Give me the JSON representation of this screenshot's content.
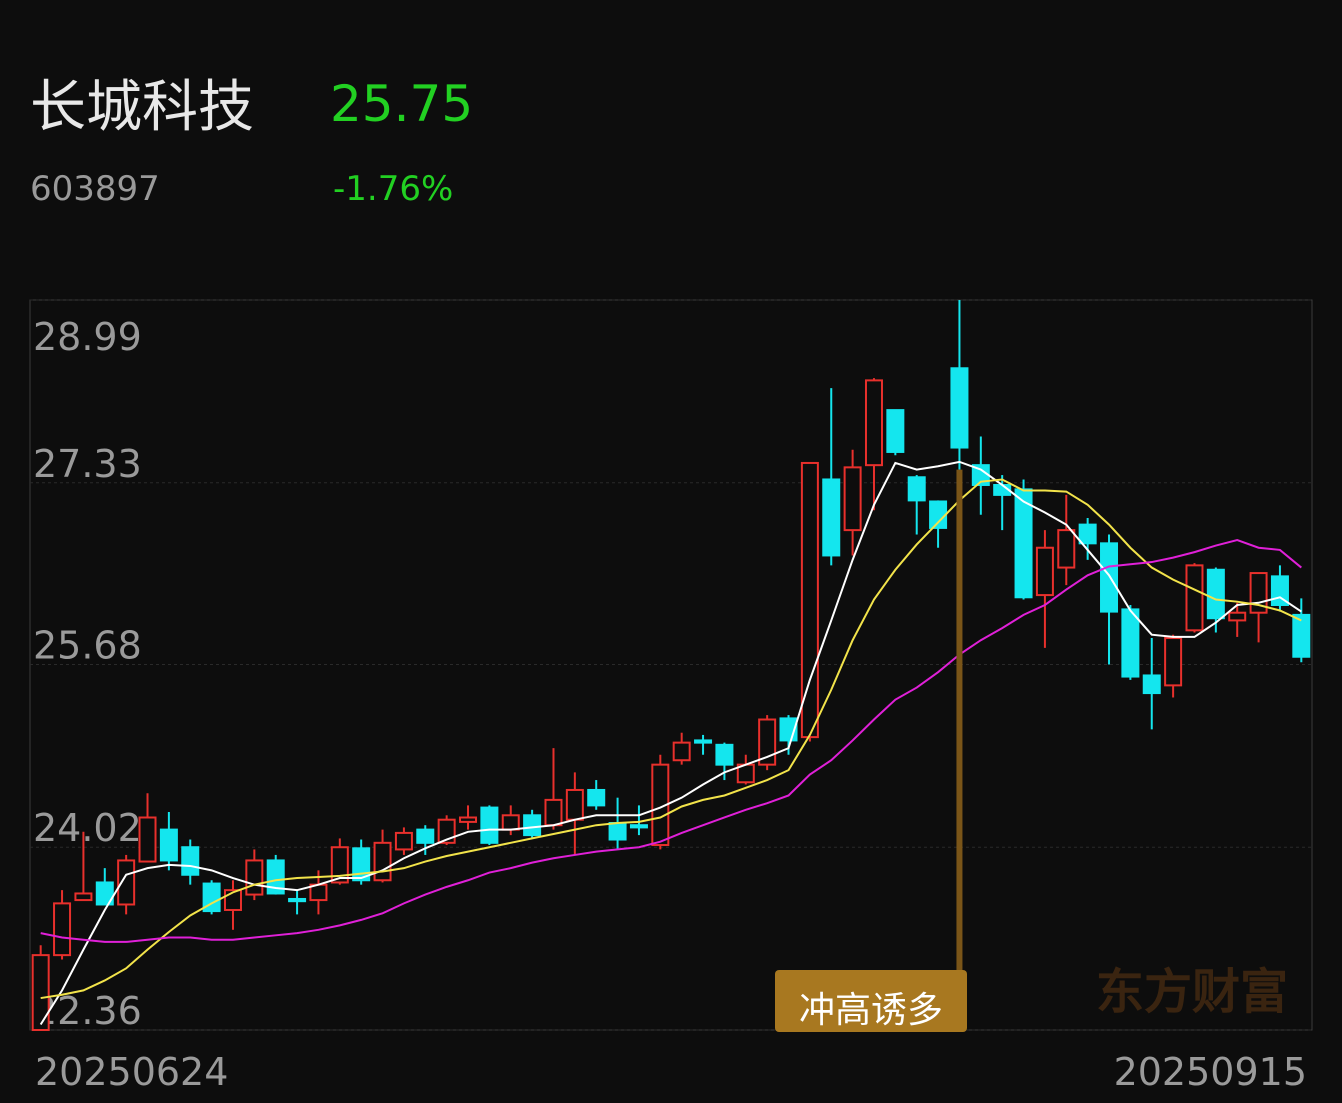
{
  "header": {
    "name": "长城科技",
    "price": "25.75",
    "code": "603897",
    "change": "-1.76%"
  },
  "chart_data": {
    "type": "candlestick",
    "categories": [
      "20250624",
      null,
      null,
      null,
      null,
      null,
      null,
      null,
      null,
      null,
      null,
      null,
      null,
      null,
      null,
      null,
      null,
      null,
      null,
      null,
      null,
      null,
      null,
      null,
      null,
      null,
      null,
      null,
      null,
      null,
      null,
      null,
      null,
      null,
      null,
      null,
      null,
      null,
      null,
      null,
      null,
      null,
      null,
      null,
      null,
      null,
      null,
      null,
      null,
      null,
      null,
      null,
      null,
      null,
      null,
      null,
      null,
      null,
      null,
      "20250915"
    ],
    "open": [
      22.36,
      23.04,
      23.54,
      23.7,
      23.5,
      23.89,
      24.18,
      24.02,
      23.69,
      23.45,
      23.59,
      23.9,
      23.55,
      23.54,
      23.7,
      24.01,
      23.72,
      24.0,
      24.18,
      24.06,
      24.25,
      24.38,
      24.18,
      24.31,
      24.22,
      24.27,
      24.54,
      24.24,
      24.22,
      24.04,
      24.81,
      24.99,
      24.95,
      24.61,
      24.77,
      25.19,
      25.02,
      27.36,
      26.9,
      27.49,
      27.99,
      27.38,
      27.16,
      28.37,
      27.49,
      27.31,
      27.27,
      26.31,
      26.56,
      26.95,
      26.78,
      26.18,
      25.58,
      25.49,
      25.99,
      26.54,
      26.08,
      26.15,
      26.48,
      26.13
    ],
    "high": [
      23.13,
      23.63,
      24.16,
      23.83,
      23.95,
      24.51,
      24.34,
      24.09,
      23.72,
      23.72,
      24.0,
      23.95,
      23.63,
      23.81,
      24.1,
      24.09,
      24.18,
      24.2,
      24.22,
      24.31,
      24.4,
      24.4,
      24.4,
      24.36,
      24.92,
      24.7,
      24.63,
      24.47,
      24.4,
      24.86,
      25.06,
      25.04,
      24.97,
      24.86,
      25.22,
      25.22,
      27.51,
      28.19,
      27.63,
      28.28,
      27.99,
      27.4,
      27.17,
      28.99,
      27.75,
      27.4,
      27.36,
      26.9,
      27.22,
      27.01,
      26.86,
      26.22,
      25.92,
      25.95,
      26.6,
      26.56,
      26.24,
      26.51,
      26.58,
      26.28
    ],
    "low": [
      22.36,
      23.0,
      23.54,
      23.5,
      23.41,
      23.89,
      23.81,
      23.68,
      23.41,
      23.27,
      23.54,
      23.59,
      23.41,
      23.41,
      23.68,
      23.68,
      23.7,
      23.95,
      23.95,
      24.04,
      24.18,
      24.04,
      24.13,
      24.1,
      24.18,
      23.95,
      24.36,
      24.0,
      24.13,
      24.0,
      24.77,
      24.86,
      24.63,
      24.59,
      24.72,
      24.86,
      24.98,
      26.58,
      26.67,
      27.08,
      27.58,
      26.86,
      26.74,
      27.45,
      27.04,
      26.9,
      26.27,
      25.83,
      26.4,
      26.63,
      25.68,
      25.54,
      25.09,
      25.38,
      25.97,
      25.97,
      25.93,
      25.88,
      26.16,
      25.7
    ],
    "close": [
      23.04,
      23.51,
      23.6,
      23.5,
      23.9,
      24.29,
      23.9,
      23.77,
      23.44,
      23.63,
      23.9,
      23.6,
      23.53,
      23.68,
      24.02,
      23.72,
      24.06,
      24.15,
      24.06,
      24.27,
      24.29,
      24.06,
      24.31,
      24.13,
      24.45,
      24.54,
      24.4,
      24.09,
      24.2,
      24.77,
      24.97,
      24.97,
      24.77,
      24.77,
      25.18,
      24.99,
      27.51,
      26.67,
      27.47,
      28.26,
      27.61,
      27.17,
      26.92,
      27.65,
      27.31,
      27.22,
      26.29,
      26.74,
      26.9,
      26.78,
      26.16,
      25.57,
      25.42,
      25.92,
      26.58,
      26.1,
      26.15,
      26.51,
      26.22,
      25.75
    ],
    "up_color": "#e8302c",
    "down_color": "#14e6ee",
    "series": [
      {
        "color": "#ffffff",
        "values": [
          22.41,
          22.72,
          23.09,
          23.45,
          23.77,
          23.83,
          23.86,
          23.85,
          23.81,
          23.74,
          23.68,
          23.65,
          23.63,
          23.68,
          23.74,
          23.74,
          23.81,
          23.92,
          24.01,
          24.09,
          24.16,
          24.18,
          24.18,
          24.2,
          24.22,
          24.27,
          24.31,
          24.31,
          24.31,
          24.38,
          24.47,
          24.59,
          24.7,
          24.77,
          24.84,
          24.92,
          25.54,
          26.08,
          26.63,
          27.13,
          27.51,
          27.45,
          27.48,
          27.52,
          27.45,
          27.31,
          27.16,
          27.06,
          26.95,
          26.72,
          26.49,
          26.17,
          25.95,
          25.93,
          25.93,
          26.06,
          26.22,
          26.24,
          26.29,
          26.16
        ]
      },
      {
        "color": "#f2e34a",
        "values": [
          22.65,
          22.68,
          22.72,
          22.81,
          22.92,
          23.09,
          23.25,
          23.4,
          23.51,
          23.61,
          23.68,
          23.72,
          23.74,
          23.75,
          23.76,
          23.78,
          23.8,
          23.83,
          23.89,
          23.94,
          23.98,
          24.02,
          24.06,
          24.1,
          24.14,
          24.18,
          24.22,
          24.24,
          24.25,
          24.29,
          24.39,
          24.45,
          24.49,
          24.56,
          24.63,
          24.72,
          25.04,
          25.45,
          25.9,
          26.27,
          26.54,
          26.77,
          26.97,
          27.17,
          27.34,
          27.36,
          27.26,
          27.26,
          27.25,
          27.13,
          26.95,
          26.74,
          26.56,
          26.45,
          26.36,
          26.27,
          26.25,
          26.22,
          26.17,
          26.08
        ]
      },
      {
        "color": "#e020d8",
        "values": [
          23.24,
          23.2,
          23.18,
          23.16,
          23.16,
          23.18,
          23.2,
          23.2,
          23.18,
          23.18,
          23.2,
          23.22,
          23.24,
          23.27,
          23.31,
          23.36,
          23.42,
          23.51,
          23.59,
          23.66,
          23.72,
          23.79,
          23.83,
          23.88,
          23.92,
          23.95,
          23.98,
          24.0,
          24.02,
          24.07,
          24.15,
          24.22,
          24.29,
          24.36,
          24.42,
          24.49,
          24.68,
          24.81,
          24.99,
          25.18,
          25.36,
          25.47,
          25.61,
          25.77,
          25.9,
          26.01,
          26.13,
          26.22,
          26.36,
          26.49,
          26.57,
          26.59,
          26.61,
          26.65,
          26.7,
          26.76,
          26.81,
          26.74,
          26.72,
          26.56
        ]
      }
    ],
    "ylim": [
      22.36,
      28.99
    ],
    "yticks": [
      28.99,
      27.33,
      25.68,
      24.02,
      22.36
    ],
    "grid": true,
    "annotation": "冲高诱多",
    "watermark": "东方财富"
  }
}
